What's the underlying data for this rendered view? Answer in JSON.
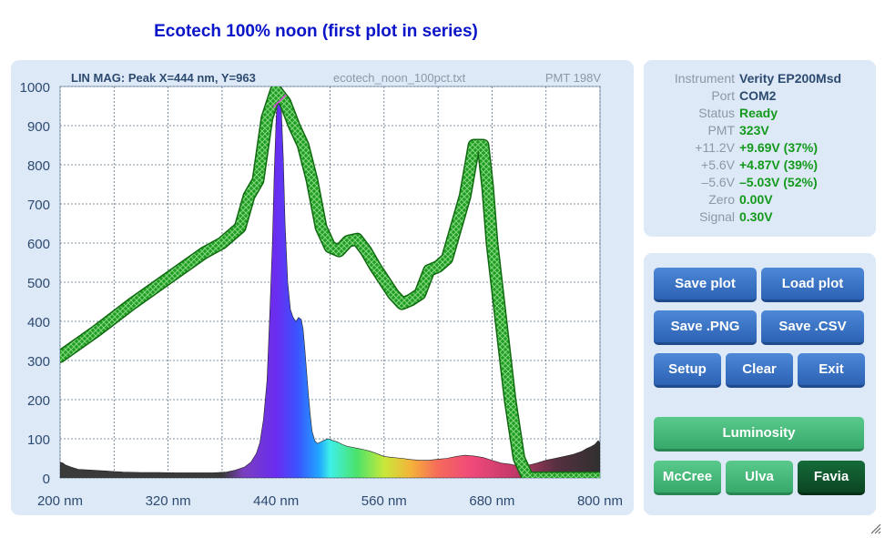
{
  "window": {
    "title": "Ecotech 100% noon (first plot in series)"
  },
  "plot": {
    "header_left": "LIN MAG: Peak X=444 nm, Y=963",
    "header_file": "ecotech_noon_100pct.txt",
    "header_pmt": "PMT 198V"
  },
  "chart_data": {
    "type": "area",
    "x_axis": {
      "ticks": [
        "200 nm",
        "320 nm",
        "440 nm",
        "560 nm",
        "680 nm",
        "800 nm"
      ],
      "range": [
        200,
        800
      ],
      "unit": "nm"
    },
    "y_axis": {
      "ticks": [
        "0",
        "100",
        "200",
        "300",
        "400",
        "500",
        "600",
        "700",
        "800",
        "900",
        "1000"
      ],
      "range": [
        0,
        1000
      ]
    },
    "grid": true,
    "peak_marker": {
      "x": 444,
      "y": 963
    },
    "series": [
      {
        "style": "spectral-gradient-fill",
        "x": [
          200,
          203,
          206,
          212,
          220,
          235,
          250,
          270,
          290,
          310,
          330,
          350,
          370,
          385,
          395,
          405,
          412,
          418,
          422,
          426,
          430,
          433,
          436,
          438,
          440,
          441,
          442,
          443,
          444,
          445,
          446,
          448,
          450,
          453,
          456,
          459,
          462,
          465,
          468,
          470,
          472,
          474,
          476,
          478,
          480,
          483,
          486,
          490,
          494,
          498,
          502,
          508,
          514,
          520,
          526,
          532,
          538,
          545,
          552,
          560,
          570,
          580,
          590,
          600,
          610,
          620,
          630,
          640,
          650,
          660,
          670,
          680,
          690,
          700,
          710,
          720,
          730,
          740,
          750,
          760,
          770,
          780,
          785,
          790,
          794,
          796,
          798,
          800
        ],
        "values": [
          40,
          38,
          33,
          28,
          22,
          20,
          18,
          15,
          14,
          14,
          13,
          13,
          13,
          15,
          20,
          28,
          40,
          62,
          90,
          150,
          250,
          420,
          600,
          780,
          910,
          950,
          960,
          962,
          963,
          958,
          935,
          820,
          650,
          500,
          430,
          410,
          400,
          410,
          405,
          380,
          330,
          270,
          210,
          160,
          120,
          95,
          88,
          92,
          97,
          100,
          96,
          92,
          85,
          80,
          78,
          75,
          72,
          68,
          62,
          55,
          52,
          50,
          47,
          45,
          45,
          48,
          50,
          55,
          58,
          56,
          52,
          45,
          38,
          35,
          30,
          32,
          38,
          45,
          50,
          55,
          60,
          68,
          75,
          80,
          85,
          90,
          95,
          90
        ]
      },
      {
        "style": "green-hatched-band",
        "x": [
          200,
          240,
          280,
          320,
          360,
          380,
          400,
          410,
          420,
          430,
          440,
          450,
          460,
          470,
          480,
          490,
          500,
          510,
          520,
          530,
          540,
          550,
          560,
          570,
          580,
          590,
          600,
          610,
          620,
          630,
          640,
          650,
          660,
          670,
          675,
          680,
          690,
          700,
          710,
          720,
          800
        ],
        "values": [
          310,
          375,
          445,
          510,
          575,
          600,
          640,
          720,
          760,
          920,
          990,
          960,
          900,
          850,
          760,
          640,
          590,
          580,
          605,
          610,
          580,
          540,
          505,
          470,
          445,
          455,
          470,
          530,
          540,
          560,
          640,
          720,
          850,
          850,
          745,
          600,
          400,
          200,
          50,
          0,
          0
        ]
      }
    ]
  },
  "instrument_info": {
    "rows": [
      {
        "label": "Instrument",
        "value": "Verity EP200Msd",
        "color": "#2d4a70"
      },
      {
        "label": "Port",
        "value": "COM2",
        "color": "#2d4a70"
      },
      {
        "label": "Status",
        "value": "Ready",
        "color": "#139a1c"
      },
      {
        "label": "PMT",
        "value": "323V",
        "color": "#139a1c"
      },
      {
        "label": "+11.2V",
        "value": "+9.69V (37%)",
        "color": "#139a1c"
      },
      {
        "label": "+5.6V",
        "value": "+4.87V (39%)",
        "color": "#139a1c"
      },
      {
        "label": "–5.6V",
        "value": "–5.03V (52%)",
        "color": "#139a1c"
      },
      {
        "label": "Zero",
        "value": "0.00V",
        "color": "#139a1c"
      },
      {
        "label": "Signal",
        "value": "0.30V",
        "color": "#139a1c"
      }
    ]
  },
  "buttons": {
    "save_plot": "Save plot",
    "load_plot": "Load plot",
    "save_png": "Save .PNG",
    "save_csv": "Save .CSV",
    "setup": "Setup",
    "clear": "Clear",
    "exit": "Exit",
    "luminosity": "Luminosity",
    "mccree": "McCree",
    "ulva": "Ulva",
    "favia": "Favia"
  },
  "colors": {
    "title": "#0a14c8",
    "panel": "#dde9f7",
    "green_band": "#1f9c1f",
    "button_blue": "#3a72c4",
    "button_green": "#47b87a",
    "button_selected": "#0f5a2e"
  },
  "icons": {
    "resize": "resize-grip-icon"
  }
}
